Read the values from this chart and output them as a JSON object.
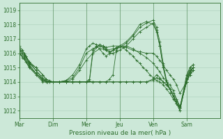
{
  "bg_color": "#cce8d8",
  "grid_color": "#aacfba",
  "line_color": "#2d6e2d",
  "xlabel": "Pression niveau de la mer( hPa )",
  "ylim": [
    1011.5,
    1019.5
  ],
  "yticks": [
    1012,
    1013,
    1014,
    1015,
    1016,
    1017,
    1018,
    1019
  ],
  "day_labels": [
    "Mar",
    "Dim",
    "Mer",
    "Jeu",
    "Ven",
    "Sam"
  ],
  "xlim": [
    0,
    6.0
  ],
  "series": [
    {
      "x": [
        0.0,
        0.1,
        0.2,
        0.3,
        0.5,
        0.7,
        0.8,
        0.9,
        1.0,
        1.2,
        1.4,
        1.6,
        1.8,
        2.0,
        2.2,
        2.4,
        2.5,
        2.6,
        2.8,
        3.0,
        3.2,
        3.4,
        3.6,
        3.8,
        4.0,
        4.1,
        4.2,
        4.3,
        4.4,
        4.5,
        4.6,
        4.7,
        4.8,
        5.0,
        5.1,
        5.2
      ],
      "y": [
        1016.3,
        1016.0,
        1015.8,
        1015.3,
        1015.0,
        1014.5,
        1014.2,
        1014.1,
        1014.0,
        1014.0,
        1014.1,
        1014.3,
        1015.0,
        1016.0,
        1016.3,
        1016.5,
        1016.5,
        1016.4,
        1016.5,
        1016.5,
        1016.8,
        1017.3,
        1018.0,
        1018.2,
        1018.0,
        1017.5,
        1016.5,
        1015.0,
        1014.0,
        1013.5,
        1013.0,
        1012.5,
        1012.2,
        1014.5,
        1015.0,
        1015.2
      ]
    },
    {
      "x": [
        0.0,
        0.1,
        0.2,
        0.3,
        0.5,
        0.7,
        0.8,
        0.9,
        1.0,
        1.2,
        1.4,
        1.6,
        1.8,
        2.0,
        2.2,
        2.4,
        2.5,
        2.6,
        2.8,
        3.0,
        3.2,
        3.4,
        3.6,
        3.8,
        4.0,
        4.1,
        4.2,
        4.3,
        4.4,
        4.5,
        4.6,
        4.7,
        4.8,
        5.0,
        5.1,
        5.2
      ],
      "y": [
        1016.0,
        1015.7,
        1015.4,
        1015.0,
        1014.6,
        1014.2,
        1014.0,
        1014.0,
        1014.0,
        1014.0,
        1014.0,
        1014.2,
        1014.8,
        1015.5,
        1016.0,
        1016.3,
        1016.3,
        1016.2,
        1016.3,
        1016.4,
        1016.7,
        1017.2,
        1017.8,
        1018.1,
        1018.3,
        1017.8,
        1016.8,
        1015.3,
        1014.1,
        1013.5,
        1013.0,
        1012.5,
        1012.0,
        1014.2,
        1014.8,
        1015.0
      ]
    },
    {
      "x": [
        0.0,
        0.1,
        0.2,
        0.3,
        0.5,
        0.7,
        0.8,
        0.9,
        1.0,
        1.2,
        1.4,
        1.6,
        1.8,
        2.0,
        2.1,
        2.2,
        2.3,
        2.4,
        2.5,
        2.6,
        2.7,
        2.8,
        2.9,
        3.0,
        3.2,
        3.4,
        3.6,
        3.8,
        4.0,
        4.1,
        4.2,
        4.3,
        4.4,
        4.5,
        4.6,
        4.7,
        4.8,
        5.0,
        5.1,
        5.2
      ],
      "y": [
        1016.5,
        1016.2,
        1015.8,
        1015.4,
        1015.0,
        1014.5,
        1014.2,
        1014.0,
        1014.0,
        1014.0,
        1014.1,
        1014.5,
        1015.2,
        1016.3,
        1016.5,
        1016.7,
        1016.6,
        1016.5,
        1016.4,
        1016.2,
        1016.0,
        1016.0,
        1016.1,
        1016.2,
        1016.5,
        1017.0,
        1017.5,
        1017.8,
        1018.1,
        1017.6,
        1016.5,
        1015.0,
        1014.0,
        1013.5,
        1013.0,
        1012.5,
        1012.0,
        1014.3,
        1015.0,
        1015.2
      ]
    },
    {
      "x": [
        0.0,
        0.15,
        0.3,
        0.5,
        0.7,
        0.85,
        1.0,
        1.2,
        1.4,
        1.6,
        1.8,
        2.0,
        2.2,
        2.4,
        2.6,
        2.8,
        3.0,
        3.2,
        3.4,
        3.6,
        3.8,
        4.0,
        4.1,
        4.2,
        4.3,
        4.4,
        4.5,
        4.6,
        4.7,
        4.8,
        5.0,
        5.1,
        5.2
      ],
      "y": [
        1016.2,
        1015.9,
        1015.3,
        1014.8,
        1014.2,
        1014.0,
        1014.0,
        1014.0,
        1014.0,
        1014.0,
        1014.0,
        1014.0,
        1014.0,
        1014.0,
        1014.0,
        1014.0,
        1014.0,
        1014.0,
        1014.0,
        1014.0,
        1014.0,
        1014.2,
        1014.5,
        1014.3,
        1014.0,
        1013.8,
        1013.5,
        1013.2,
        1012.8,
        1012.2,
        1014.0,
        1014.5,
        1014.8
      ]
    },
    {
      "x": [
        0.0,
        0.15,
        0.3,
        0.5,
        0.7,
        0.85,
        1.0,
        1.2,
        1.4,
        1.6,
        1.8,
        2.0,
        2.2,
        2.4,
        2.6,
        2.8,
        3.0,
        3.2,
        3.4,
        3.6,
        3.8,
        4.0,
        4.1,
        4.2,
        4.3,
        4.4,
        4.5,
        4.6,
        4.7,
        4.8,
        5.0,
        5.1,
        5.2
      ],
      "y": [
        1016.0,
        1015.7,
        1015.1,
        1014.6,
        1014.1,
        1014.0,
        1014.0,
        1014.0,
        1014.0,
        1014.0,
        1014.0,
        1014.0,
        1014.0,
        1014.0,
        1014.0,
        1014.0,
        1014.0,
        1014.0,
        1014.0,
        1014.0,
        1014.0,
        1014.1,
        1014.3,
        1014.2,
        1014.0,
        1013.8,
        1013.5,
        1013.0,
        1012.7,
        1012.2,
        1014.0,
        1014.5,
        1014.8
      ]
    },
    {
      "x": [
        0.0,
        0.15,
        0.3,
        0.5,
        0.7,
        0.85,
        1.0,
        1.2,
        1.4,
        1.6,
        1.8,
        2.0,
        2.1,
        2.2,
        2.3,
        2.4,
        2.5,
        2.6,
        2.7,
        2.8,
        2.9,
        3.0,
        3.1,
        3.2,
        3.3,
        3.4,
        3.5,
        3.6,
        3.7,
        3.8,
        3.9,
        4.0,
        4.1,
        4.2,
        4.3,
        4.4,
        4.5,
        4.6,
        4.7,
        4.8,
        5.0,
        5.1,
        5.2
      ],
      "y": [
        1016.0,
        1015.6,
        1015.0,
        1014.5,
        1014.0,
        1014.0,
        1014.0,
        1014.0,
        1014.0,
        1014.0,
        1014.0,
        1014.0,
        1014.2,
        1016.2,
        1016.5,
        1016.3,
        1016.0,
        1015.8,
        1016.0,
        1016.2,
        1016.3,
        1016.5,
        1016.4,
        1016.2,
        1016.0,
        1015.8,
        1015.5,
        1015.3,
        1015.0,
        1014.8,
        1014.5,
        1014.3,
        1014.1,
        1014.0,
        1013.8,
        1013.5,
        1013.2,
        1012.8,
        1012.5,
        1012.2,
        1014.2,
        1014.8,
        1015.0
      ]
    },
    {
      "x": [
        0.0,
        0.15,
        0.3,
        0.5,
        0.7,
        0.85,
        1.0,
        1.2,
        1.4,
        1.6,
        1.8,
        2.0,
        2.1,
        2.2,
        2.3,
        2.4,
        2.5,
        2.6,
        2.7,
        2.8,
        2.9,
        3.0,
        3.2,
        3.4,
        3.6,
        3.8,
        4.0,
        4.1,
        4.2,
        4.3,
        4.4,
        4.5,
        4.6,
        4.7,
        4.8,
        5.0,
        5.1,
        5.2
      ],
      "y": [
        1016.1,
        1015.8,
        1015.2,
        1014.6,
        1014.1,
        1014.0,
        1014.0,
        1014.0,
        1014.0,
        1014.0,
        1014.0,
        1014.0,
        1014.1,
        1016.0,
        1016.4,
        1016.6,
        1016.5,
        1016.3,
        1016.1,
        1016.2,
        1016.4,
        1016.5,
        1016.5,
        1016.3,
        1016.0,
        1015.7,
        1015.3,
        1015.0,
        1014.7,
        1014.3,
        1014.0,
        1013.8,
        1013.4,
        1012.8,
        1012.3,
        1014.0,
        1014.7,
        1015.0
      ]
    },
    {
      "x": [
        0.0,
        0.15,
        0.3,
        0.5,
        0.7,
        0.85,
        1.0,
        1.2,
        1.4,
        1.6,
        1.8,
        2.0,
        2.2,
        2.4,
        2.6,
        2.7,
        2.8,
        2.9,
        3.0,
        3.2,
        3.4,
        3.6,
        3.8,
        4.0,
        4.1,
        4.2,
        4.3,
        4.4,
        4.5,
        4.6,
        4.7,
        4.8,
        5.0,
        5.1,
        5.2
      ],
      "y": [
        1016.3,
        1016.0,
        1015.4,
        1014.8,
        1014.3,
        1014.0,
        1014.0,
        1014.0,
        1014.0,
        1014.0,
        1014.0,
        1014.0,
        1014.0,
        1014.0,
        1014.0,
        1014.2,
        1014.5,
        1016.2,
        1016.5,
        1016.4,
        1016.2,
        1016.1,
        1016.0,
        1016.0,
        1015.8,
        1015.5,
        1015.2,
        1014.8,
        1014.5,
        1014.2,
        1013.8,
        1013.2,
        1014.0,
        1014.6,
        1015.0
      ]
    }
  ],
  "day_tick_x": [
    0.0,
    1.0,
    2.0,
    3.0,
    4.0,
    5.0
  ],
  "day_tick_labels": [
    "Mar",
    "Dim",
    "Mer",
    "Jeu",
    "Ven",
    "Sam"
  ]
}
